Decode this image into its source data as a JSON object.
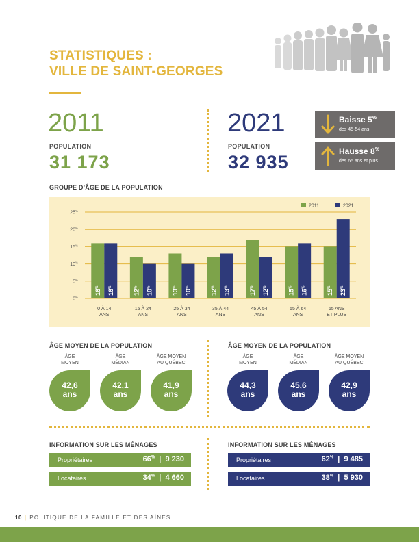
{
  "title": {
    "line1": "STATISTIQUES :",
    "line2": "VILLE DE SAINT-GEORGES"
  },
  "years": {
    "y2011": {
      "year": "2011",
      "population_label": "POPULATION",
      "population": "31 173"
    },
    "y2021": {
      "year": "2021",
      "population_label": "POPULATION",
      "population": "32 935"
    }
  },
  "trends": [
    {
      "direction": "down",
      "title": "Baisse 5",
      "unit": "%",
      "subtitle": "des 45-54 ans"
    },
    {
      "direction": "up",
      "title": "Hausse 8",
      "unit": "%",
      "subtitle": "des 65 ans et plus"
    }
  ],
  "chart_section_label": "GROUPE D’ÂGE DE LA POPULATION",
  "chart_data": {
    "type": "bar",
    "title": "GROUPE D’ÂGE DE LA POPULATION",
    "categories": [
      [
        "0 À 14",
        "ANS"
      ],
      [
        "15 À 24",
        "ANS"
      ],
      [
        "25 À 34",
        "ANS"
      ],
      [
        "35 À 44",
        "ANS"
      ],
      [
        "45 À 54",
        "ANS"
      ],
      [
        "55 À 64",
        "ANS"
      ],
      [
        "65 ANS",
        "ET PLUS"
      ]
    ],
    "series": [
      {
        "name": "2011",
        "color": "#7da34a",
        "values": [
          16,
          12,
          13,
          12,
          17,
          15,
          15
        ]
      },
      {
        "name": "2021",
        "color": "#2e3a7a",
        "values": [
          16,
          10,
          10,
          13,
          12,
          16,
          23
        ]
      }
    ],
    "yticks": [
      0,
      5,
      10,
      15,
      20,
      25
    ],
    "ytick_unit": "%",
    "ylim": [
      0,
      25
    ],
    "grid": true,
    "legend": "top-right",
    "gridline_color": "#e3b63d",
    "label_unit": "%"
  },
  "age": {
    "label": "ÂGE MOYEN DE LA POPULATION",
    "headers": [
      [
        "ÂGE",
        "MOYEN"
      ],
      [
        "ÂGE",
        "MÉDIAN"
      ],
      [
        "ÂGE MOYEN",
        "AU QUÉBEC"
      ]
    ],
    "unit": "ans",
    "values_2011": [
      "42,6",
      "42,1",
      "41,9"
    ],
    "values_2021": [
      "44,3",
      "45,6",
      "42,9"
    ]
  },
  "households": {
    "label": "INFORMATION SUR LES MÉNAGES",
    "rows_2011": [
      {
        "label": "Propriétaires",
        "pct": "66",
        "unit": "%",
        "count": "9 230"
      },
      {
        "label": "Locataires",
        "pct": "34",
        "unit": "%",
        "count": "4 660"
      }
    ],
    "rows_2021": [
      {
        "label": "Propriétaires",
        "pct": "62",
        "unit": "%",
        "count": "9 485"
      },
      {
        "label": "Locataires",
        "pct": "38",
        "unit": "%",
        "count": "5 930"
      }
    ]
  },
  "footer": {
    "page": "10",
    "separator": "|",
    "text": "POLITIQUE DE LA FAMILLE ET DES AÎNÉS"
  }
}
